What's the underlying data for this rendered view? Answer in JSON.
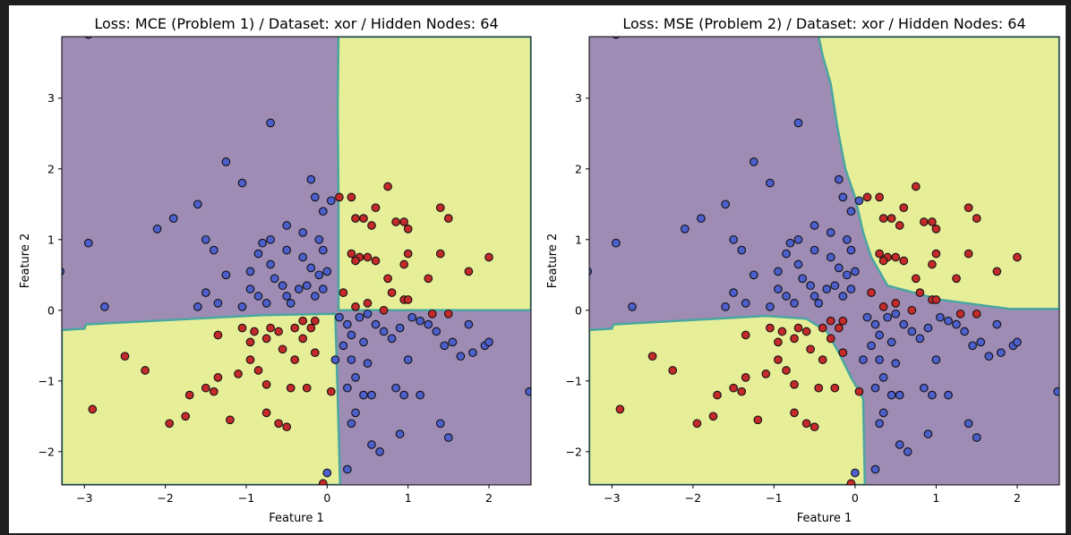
{
  "colors": {
    "class_purple_region": "#9e8cb4",
    "class_yellow_region": "#e6ee98",
    "boundary": "#4aa6a0",
    "point_blue": "#4c5fcc",
    "point_red": "#c42a2a",
    "point_edge": "#111111",
    "window_background": "#1e1e1e"
  },
  "chart_data": [
    {
      "type": "scatter",
      "title": "Loss: MCE (Problem 1) / Dataset: xor / Hidden Nodes: 64",
      "xlabel": "Feature 1",
      "ylabel": "Feature 2",
      "xlim": [
        -3.28,
        2.52
      ],
      "ylim": [
        -2.47,
        3.87
      ],
      "xticks": [
        -3,
        -2,
        -1,
        0,
        1,
        2
      ],
      "yticks": [
        -2,
        -1,
        0,
        1,
        2,
        3
      ],
      "background": "decision-regions",
      "grid": false,
      "legend": "none",
      "yellow_region_polygons": [
        [
          [
            0.14,
            3.87
          ],
          [
            2.52,
            3.87
          ],
          [
            2.52,
            0.0
          ],
          [
            0.14,
            0.0
          ],
          [
            0.14,
            1.55
          ],
          [
            0.13,
            2.9
          ]
        ],
        [
          [
            -3.28,
            -0.28
          ],
          [
            -3.0,
            -0.26
          ],
          [
            -2.98,
            -0.2
          ],
          [
            -0.8,
            -0.07
          ],
          [
            0.1,
            -0.05
          ],
          [
            0.13,
            -1.2
          ],
          [
            0.16,
            -2.47
          ],
          [
            -3.28,
            -2.47
          ]
        ]
      ]
    },
    {
      "type": "scatter",
      "title": "Loss: MSE (Problem 2) / Dataset: xor / Hidden Nodes: 64",
      "xlabel": "Feature 1",
      "ylabel": "Feature 2",
      "xlim": [
        -3.28,
        2.52
      ],
      "ylim": [
        -2.47,
        3.87
      ],
      "xticks": [
        -3,
        -2,
        -1,
        0,
        1,
        2
      ],
      "yticks": [
        -2,
        -1,
        0,
        1,
        2,
        3
      ],
      "background": "decision-regions",
      "grid": false,
      "legend": "none",
      "yellow_region_polygons": [
        [
          [
            -0.45,
            3.87
          ],
          [
            2.52,
            3.87
          ],
          [
            2.52,
            0.02
          ],
          [
            1.9,
            0.02
          ],
          [
            1.05,
            0.15
          ],
          [
            0.4,
            0.35
          ],
          [
            0.2,
            0.75
          ],
          [
            0.1,
            1.1
          ],
          [
            0.0,
            1.6
          ],
          [
            -0.12,
            2.0
          ],
          [
            -0.22,
            2.6
          ],
          [
            -0.3,
            3.2
          ],
          [
            -0.4,
            3.6
          ]
        ],
        [
          [
            -3.28,
            -0.28
          ],
          [
            -3.0,
            -0.26
          ],
          [
            -2.98,
            -0.2
          ],
          [
            -1.1,
            -0.08
          ],
          [
            -0.6,
            -0.12
          ],
          [
            -0.35,
            -0.3
          ],
          [
            -0.2,
            -0.6
          ],
          [
            -0.05,
            -0.95
          ],
          [
            0.1,
            -1.25
          ],
          [
            0.12,
            -2.47
          ],
          [
            -3.28,
            -2.47
          ]
        ]
      ]
    }
  ],
  "points": {
    "blue": [
      [
        -2.95,
        3.9
      ],
      [
        -0.7,
        2.65
      ],
      [
        -1.25,
        2.1
      ],
      [
        -1.05,
        1.8
      ],
      [
        -0.2,
        1.85
      ],
      [
        -0.15,
        1.6
      ],
      [
        -0.05,
        1.4
      ],
      [
        0.05,
        1.55
      ],
      [
        -1.6,
        1.5
      ],
      [
        -0.5,
        1.2
      ],
      [
        -0.7,
        1.0
      ],
      [
        -0.8,
        0.95
      ],
      [
        -0.3,
        1.1
      ],
      [
        -0.1,
        1.0
      ],
      [
        -1.9,
        1.3
      ],
      [
        -2.1,
        1.15
      ],
      [
        -2.95,
        0.95
      ],
      [
        -1.5,
        1.0
      ],
      [
        -1.4,
        0.85
      ],
      [
        -0.85,
        0.8
      ],
      [
        -0.7,
        0.65
      ],
      [
        -0.3,
        0.75
      ],
      [
        -0.2,
        0.6
      ],
      [
        -0.5,
        0.85
      ],
      [
        -0.05,
        0.85
      ],
      [
        -0.1,
        0.5
      ],
      [
        0.0,
        0.55
      ],
      [
        -1.25,
        0.5
      ],
      [
        -0.95,
        0.55
      ],
      [
        -0.65,
        0.45
      ],
      [
        -0.55,
        0.35
      ],
      [
        -0.35,
        0.3
      ],
      [
        -0.25,
        0.35
      ],
      [
        -0.15,
        0.2
      ],
      [
        -0.05,
        0.3
      ],
      [
        -0.5,
        0.2
      ],
      [
        -0.45,
        0.1
      ],
      [
        -0.75,
        0.1
      ],
      [
        -0.85,
        0.2
      ],
      [
        -0.95,
        0.3
      ],
      [
        -1.5,
        0.25
      ],
      [
        -1.05,
        0.05
      ],
      [
        -1.35,
        0.1
      ],
      [
        -1.6,
        0.05
      ],
      [
        -2.75,
        0.05
      ],
      [
        -3.3,
        0.55
      ],
      [
        0.15,
        -0.1
      ],
      [
        0.25,
        -0.2
      ],
      [
        0.4,
        -0.1
      ],
      [
        0.5,
        -0.05
      ],
      [
        0.6,
        -0.2
      ],
      [
        0.7,
        -0.3
      ],
      [
        0.3,
        -0.35
      ],
      [
        0.45,
        -0.45
      ],
      [
        0.2,
        -0.5
      ],
      [
        0.1,
        -0.7
      ],
      [
        0.3,
        -0.7
      ],
      [
        0.5,
        -0.75
      ],
      [
        0.35,
        -0.95
      ],
      [
        0.25,
        -1.1
      ],
      [
        0.45,
        -1.2
      ],
      [
        0.55,
        -1.2
      ],
      [
        0.35,
        -1.45
      ],
      [
        0.3,
        -1.6
      ],
      [
        0.55,
        -1.9
      ],
      [
        0.65,
        -2.0
      ],
      [
        0.9,
        -1.75
      ],
      [
        0.85,
        -1.1
      ],
      [
        0.95,
        -1.2
      ],
      [
        1.15,
        -1.2
      ],
      [
        1.0,
        -0.7
      ],
      [
        0.8,
        -0.4
      ],
      [
        0.9,
        -0.25
      ],
      [
        1.05,
        -0.1
      ],
      [
        1.15,
        -0.15
      ],
      [
        1.25,
        -0.2
      ],
      [
        1.35,
        -0.3
      ],
      [
        1.45,
        -0.5
      ],
      [
        1.55,
        -0.45
      ],
      [
        1.75,
        -0.2
      ],
      [
        1.8,
        -0.6
      ],
      [
        1.95,
        -0.5
      ],
      [
        2.0,
        -0.45
      ],
      [
        1.65,
        -0.65
      ],
      [
        1.4,
        -1.6
      ],
      [
        1.5,
        -1.8
      ],
      [
        2.5,
        -1.15
      ],
      [
        0.25,
        -2.25
      ],
      [
        0.0,
        -2.3
      ]
    ],
    "red": [
      [
        0.15,
        1.6
      ],
      [
        0.3,
        1.6
      ],
      [
        0.75,
        1.75
      ],
      [
        0.6,
        1.45
      ],
      [
        0.35,
        1.3
      ],
      [
        0.45,
        1.3
      ],
      [
        0.55,
        1.2
      ],
      [
        0.85,
        1.25
      ],
      [
        0.95,
        1.25
      ],
      [
        1.0,
        1.15
      ],
      [
        1.4,
        1.45
      ],
      [
        1.5,
        1.3
      ],
      [
        0.3,
        0.8
      ],
      [
        0.4,
        0.75
      ],
      [
        0.35,
        0.7
      ],
      [
        0.5,
        0.75
      ],
      [
        0.6,
        0.7
      ],
      [
        1.0,
        0.8
      ],
      [
        0.95,
        0.65
      ],
      [
        1.4,
        0.8
      ],
      [
        1.75,
        0.55
      ],
      [
        2.0,
        0.75
      ],
      [
        0.75,
        0.45
      ],
      [
        0.8,
        0.25
      ],
      [
        0.95,
        0.15
      ],
      [
        1.0,
        0.15
      ],
      [
        1.25,
        0.45
      ],
      [
        0.2,
        0.25
      ],
      [
        0.5,
        0.1
      ],
      [
        0.35,
        0.05
      ],
      [
        0.7,
        0.0
      ],
      [
        1.3,
        -0.05
      ],
      [
        1.5,
        -0.05
      ],
      [
        -0.15,
        -0.15
      ],
      [
        -0.2,
        -0.25
      ],
      [
        -0.3,
        -0.15
      ],
      [
        -0.4,
        -0.25
      ],
      [
        -0.6,
        -0.3
      ],
      [
        -0.7,
        -0.25
      ],
      [
        -0.9,
        -0.3
      ],
      [
        -1.05,
        -0.25
      ],
      [
        -0.95,
        -0.45
      ],
      [
        -0.75,
        -0.4
      ],
      [
        -0.55,
        -0.55
      ],
      [
        -0.3,
        -0.4
      ],
      [
        -0.15,
        -0.6
      ],
      [
        -1.35,
        -0.35
      ],
      [
        -0.95,
        -0.7
      ],
      [
        -0.85,
        -0.85
      ],
      [
        -1.1,
        -0.9
      ],
      [
        -1.35,
        -0.95
      ],
      [
        -1.5,
        -1.1
      ],
      [
        -1.4,
        -1.15
      ],
      [
        -0.4,
        -0.7
      ],
      [
        -0.75,
        -1.05
      ],
      [
        -0.45,
        -1.1
      ],
      [
        -0.25,
        -1.1
      ],
      [
        0.05,
        -1.15
      ],
      [
        -1.2,
        -1.55
      ],
      [
        -0.6,
        -1.6
      ],
      [
        -0.5,
        -1.65
      ],
      [
        -0.75,
        -1.45
      ],
      [
        -1.7,
        -1.2
      ],
      [
        -1.75,
        -1.5
      ],
      [
        -1.95,
        -1.6
      ],
      [
        -2.25,
        -0.85
      ],
      [
        -2.5,
        -0.65
      ],
      [
        -2.9,
        -1.4
      ],
      [
        -0.05,
        -2.45
      ]
    ]
  }
}
